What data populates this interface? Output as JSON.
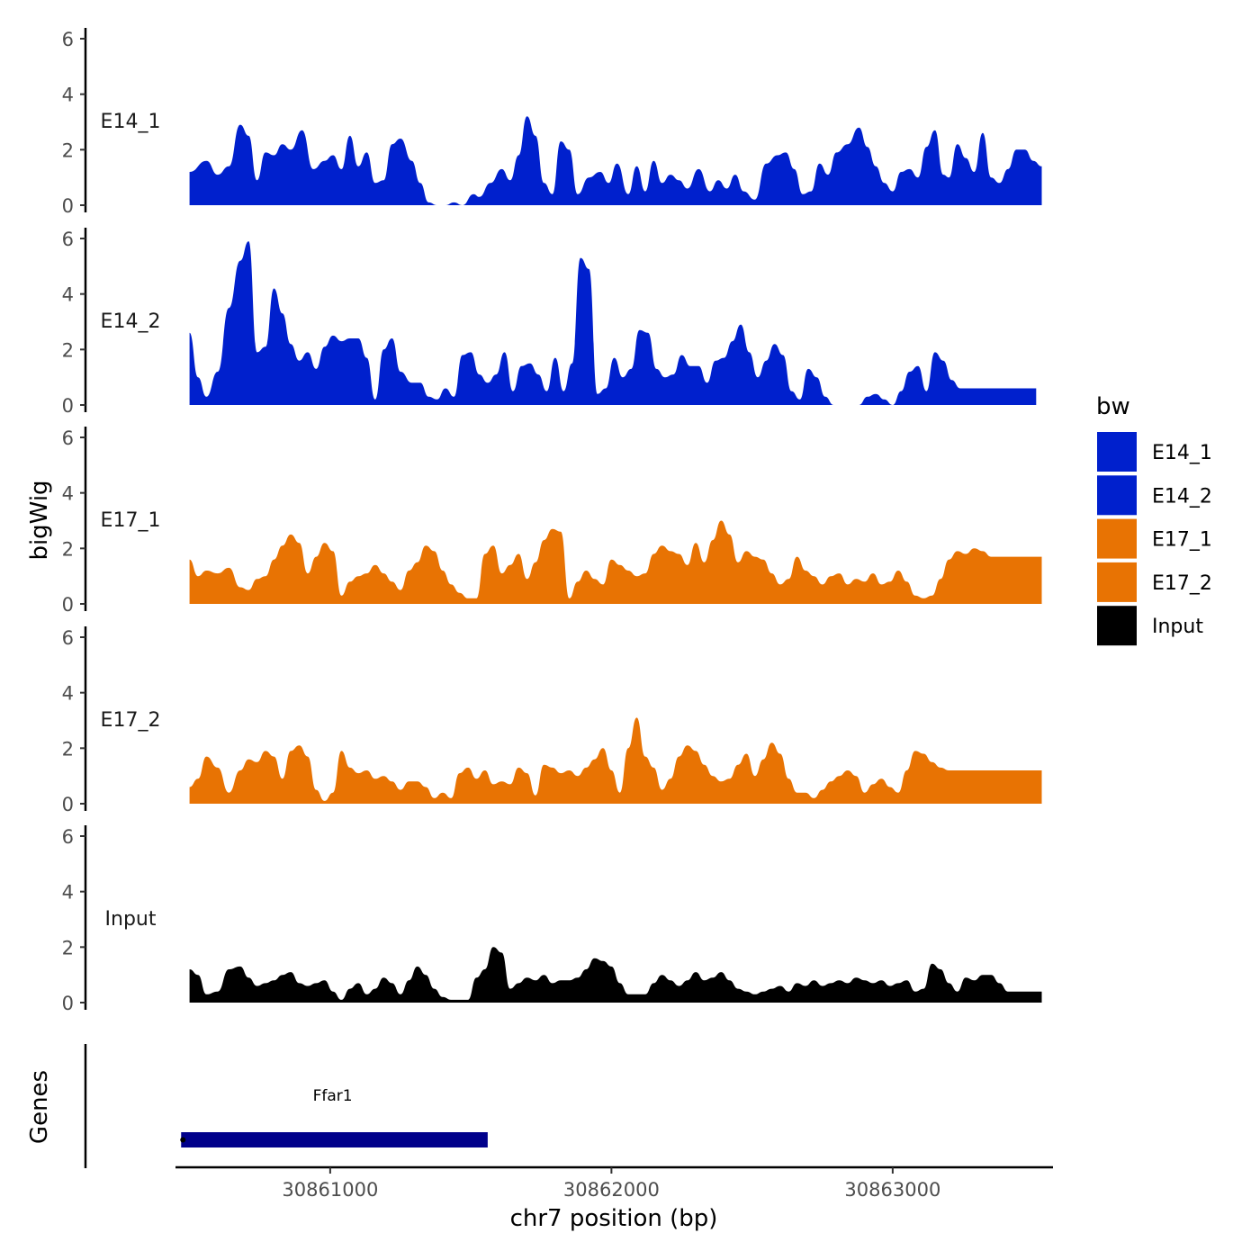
{
  "chart_data": {
    "type": "area",
    "title": "",
    "xlabel": "chr7 position (bp)",
    "ylabel": "bigWig",
    "genes_label": "Genes",
    "xlim": [
      30860450,
      30863570
    ],
    "ylim": [
      0,
      6
    ],
    "x_ticks": [
      30861000,
      30862000,
      30863000
    ],
    "x_tick_labels": [
      "30861000",
      "30862000",
      "30863000"
    ],
    "y_ticks": [
      0,
      2,
      4,
      6
    ],
    "y_tick_labels": [
      "0",
      "2",
      "4",
      "6"
    ],
    "legend": {
      "title": "bw",
      "position": "right",
      "entries": [
        {
          "label": "E14_1",
          "color": "#0020CD"
        },
        {
          "label": "E14_2",
          "color": "#0020CD"
        },
        {
          "label": "E17_1",
          "color": "#E87303"
        },
        {
          "label": "E17_2",
          "color": "#E87303"
        },
        {
          "label": "Input",
          "color": "#000000"
        }
      ]
    },
    "series": [
      {
        "name": "E14_1",
        "color": "#0020CD",
        "x": [
          30860500,
          30860560,
          30860600,
          30860640,
          30860680,
          30860710,
          30860740,
          30860770,
          30860800,
          30860830,
          30860860,
          30860900,
          30860940,
          30860980,
          30861010,
          30861040,
          30861070,
          30861100,
          30861130,
          30861160,
          30861190,
          30861220,
          30861250,
          30861290,
          30861320,
          30861350,
          30861380,
          30861410,
          30861440,
          30861470,
          30861510,
          30861530,
          30861570,
          30861610,
          30861640,
          30861670,
          30861700,
          30861730,
          30861760,
          30861790,
          30861820,
          30861850,
          30861880,
          30861920,
          30861960,
          30861990,
          30862020,
          30862060,
          30862090,
          30862120,
          30862150,
          30862180,
          30862210,
          30862240,
          30862270,
          30862310,
          30862350,
          30862380,
          30862410,
          30862440,
          30862470,
          30862510,
          30862550,
          30862590,
          30862620,
          30862650,
          30862680,
          30862710,
          30862740,
          30862770,
          30862800,
          30862840,
          30862880,
          30862910,
          30862940,
          30862970,
          30863000,
          30863030,
          30863060,
          30863090,
          30863120,
          30863150,
          30863180,
          30863200,
          30863230,
          30863260,
          30863290,
          30863320,
          30863350,
          30863380,
          30863410,
          30863440,
          30863470,
          30863500,
          30863530
        ],
        "y": [
          1.2,
          1.6,
          1.1,
          1.4,
          2.9,
          2.5,
          0.9,
          1.9,
          1.8,
          2.2,
          2.0,
          2.7,
          1.3,
          1.6,
          1.8,
          1.3,
          2.5,
          1.4,
          1.9,
          0.8,
          0.9,
          2.2,
          2.4,
          1.6,
          0.8,
          0.1,
          0.0,
          0.0,
          0.1,
          0.0,
          0.4,
          0.3,
          0.8,
          1.3,
          0.9,
          1.8,
          3.2,
          2.5,
          0.8,
          0.4,
          2.3,
          2.0,
          0.4,
          1.0,
          1.2,
          0.8,
          1.5,
          0.4,
          1.4,
          0.5,
          1.6,
          0.8,
          1.1,
          0.9,
          0.6,
          1.3,
          0.5,
          0.9,
          0.6,
          1.1,
          0.5,
          0.2,
          1.5,
          1.8,
          1.9,
          1.3,
          0.4,
          0.5,
          1.5,
          1.1,
          1.9,
          2.2,
          2.8,
          2.1,
          1.4,
          0.8,
          0.5,
          1.2,
          1.3,
          1.0,
          2.1,
          2.7,
          1.1,
          1.0,
          2.2,
          1.7,
          1.2,
          2.6,
          1.0,
          0.8,
          1.3,
          2.0,
          2.0,
          1.6,
          1.4
        ]
      },
      {
        "name": "E14_2",
        "color": "#0020CD",
        "x": [
          30860500,
          30860530,
          30860560,
          30860600,
          30860640,
          30860680,
          30860710,
          30860740,
          30860770,
          30860800,
          30860830,
          30860860,
          30860890,
          30860920,
          30860950,
          30860980,
          30861010,
          30861040,
          30861070,
          30861100,
          30861130,
          30861160,
          30861190,
          30861220,
          30861250,
          30861290,
          30861320,
          30861350,
          30861380,
          30861410,
          30861440,
          30861470,
          30861500,
          30861530,
          30861560,
          30861590,
          30861620,
          30861650,
          30861680,
          30861710,
          30861740,
          30861770,
          30861800,
          30861830,
          30861860,
          30861890,
          30861920,
          30861950,
          30861980,
          30862010,
          30862040,
          30862070,
          30862100,
          30862130,
          30862160,
          30862190,
          30862220,
          30862250,
          30862280,
          30862310,
          30862340,
          30862370,
          30862400,
          30862430,
          30862460,
          30862490,
          30862520,
          30862550,
          30862580,
          30862610,
          30862640,
          30862670,
          30862700,
          30862730,
          30862760,
          30862790,
          30862820,
          30862850,
          30862880,
          30862910,
          30862940,
          30862970,
          30863000,
          30863030,
          30863060,
          30863090,
          30863120,
          30863150,
          30863180,
          30863210,
          30863240,
          30863270,
          30863300,
          30863330,
          30863360,
          30863390,
          30863420,
          30863450,
          30863480,
          30863510
        ],
        "y": [
          2.6,
          1.0,
          0.3,
          1.2,
          3.5,
          5.2,
          5.9,
          1.9,
          2.1,
          4.2,
          3.3,
          2.2,
          1.6,
          1.9,
          1.3,
          2.1,
          2.5,
          2.3,
          2.4,
          2.4,
          1.7,
          0.2,
          2.0,
          2.4,
          1.2,
          0.8,
          0.8,
          0.3,
          0.2,
          0.6,
          0.3,
          1.8,
          1.9,
          1.1,
          0.8,
          1.1,
          1.9,
          0.5,
          1.4,
          1.5,
          1.1,
          0.5,
          1.7,
          0.5,
          1.5,
          5.3,
          4.9,
          0.4,
          0.6,
          1.7,
          1.0,
          1.3,
          2.7,
          2.6,
          1.3,
          1.0,
          1.1,
          1.8,
          1.4,
          1.4,
          0.8,
          1.6,
          1.7,
          2.3,
          2.9,
          1.9,
          1.0,
          1.6,
          2.2,
          1.8,
          0.5,
          0.2,
          1.3,
          1.0,
          0.3,
          0.0,
          0.0,
          0.0,
          0.0,
          0.3,
          0.4,
          0.2,
          0.0,
          0.5,
          1.2,
          1.4,
          0.5,
          1.9,
          1.6,
          0.9,
          0.6,
          0.6,
          0.6,
          0.6,
          0.6,
          0.6,
          0.6,
          0.6,
          0.6,
          0.6
        ]
      },
      {
        "name": "E17_1",
        "color": "#E87303",
        "x": [
          30860500,
          30860530,
          30860560,
          30860600,
          30860640,
          30860680,
          30860710,
          30860740,
          30860770,
          30860800,
          30860830,
          30860860,
          30860890,
          30860920,
          30860950,
          30860980,
          30861010,
          30861040,
          30861070,
          30861100,
          30861130,
          30861160,
          30861190,
          30861220,
          30861250,
          30861280,
          30861310,
          30861340,
          30861370,
          30861400,
          30861430,
          30861460,
          30861490,
          30861520,
          30861550,
          30861580,
          30861610,
          30861640,
          30861670,
          30861700,
          30861730,
          30861760,
          30861790,
          30861820,
          30861850,
          30861880,
          30861910,
          30861940,
          30861970,
          30862000,
          30862030,
          30862060,
          30862090,
          30862120,
          30862150,
          30862180,
          30862210,
          30862240,
          30862270,
          30862300,
          30862330,
          30862360,
          30862390,
          30862420,
          30862450,
          30862480,
          30862510,
          30862540,
          30862570,
          30862600,
          30862630,
          30862660,
          30862690,
          30862720,
          30862750,
          30862780,
          30862810,
          30862840,
          30862870,
          30862900,
          30862930,
          30862960,
          30862990,
          30863020,
          30863050,
          30863080,
          30863110,
          30863140,
          30863170,
          30863200,
          30863230,
          30863260,
          30863290,
          30863320,
          30863350,
          30863380,
          30863410,
          30863440,
          30863470,
          30863500,
          30863530
        ],
        "y": [
          1.6,
          1.0,
          1.2,
          1.1,
          1.3,
          0.6,
          0.5,
          0.9,
          1.0,
          1.6,
          2.1,
          2.5,
          2.2,
          1.1,
          1.7,
          2.2,
          1.9,
          0.3,
          0.8,
          1.0,
          1.1,
          1.4,
          1.1,
          0.8,
          0.5,
          1.2,
          1.5,
          2.1,
          1.9,
          1.2,
          0.7,
          0.4,
          0.2,
          0.2,
          1.8,
          2.1,
          1.1,
          1.4,
          1.8,
          0.9,
          1.5,
          2.3,
          2.7,
          2.6,
          0.2,
          0.8,
          1.2,
          0.9,
          0.7,
          1.6,
          1.4,
          1.2,
          1.0,
          1.1,
          1.8,
          2.1,
          1.9,
          1.8,
          1.4,
          2.2,
          1.5,
          2.3,
          3.0,
          2.5,
          1.5,
          1.9,
          1.7,
          1.6,
          1.1,
          0.7,
          0.9,
          1.7,
          1.2,
          1.0,
          0.7,
          1.0,
          1.1,
          0.7,
          0.9,
          0.8,
          1.1,
          0.7,
          0.8,
          1.2,
          0.8,
          0.3,
          0.2,
          0.3,
          0.9,
          1.6,
          1.9,
          1.8,
          2.0,
          1.9,
          1.7,
          1.7,
          1.7,
          1.7,
          1.7,
          1.7,
          1.7
        ]
      },
      {
        "name": "E17_2",
        "color": "#E87303",
        "x": [
          30860500,
          30860530,
          30860560,
          30860600,
          30860640,
          30860680,
          30860710,
          30860740,
          30860770,
          30860800,
          30860830,
          30860860,
          30860890,
          30860920,
          30860950,
          30860980,
          30861010,
          30861040,
          30861070,
          30861100,
          30861130,
          30861160,
          30861190,
          30861220,
          30861250,
          30861280,
          30861310,
          30861340,
          30861370,
          30861400,
          30861430,
          30861460,
          30861490,
          30861520,
          30861550,
          30861580,
          30861610,
          30861640,
          30861670,
          30861700,
          30861730,
          30861760,
          30861790,
          30861820,
          30861850,
          30861880,
          30861910,
          30861940,
          30861970,
          30862000,
          30862030,
          30862060,
          30862090,
          30862120,
          30862150,
          30862180,
          30862210,
          30862240,
          30862270,
          30862300,
          30862330,
          30862360,
          30862390,
          30862420,
          30862450,
          30862480,
          30862510,
          30862540,
          30862570,
          30862600,
          30862630,
          30862660,
          30862690,
          30862720,
          30862750,
          30862780,
          30862810,
          30862840,
          30862870,
          30862900,
          30862930,
          30862960,
          30862990,
          30863020,
          30863050,
          30863080,
          30863110,
          30863140,
          30863170,
          30863200,
          30863230,
          30863260,
          30863290,
          30863320,
          30863350,
          30863380,
          30863410,
          30863440,
          30863470,
          30863500,
          30863530
        ],
        "y": [
          0.6,
          0.9,
          1.7,
          1.3,
          0.4,
          1.2,
          1.6,
          1.5,
          1.9,
          1.7,
          0.9,
          1.9,
          2.1,
          1.7,
          0.5,
          0.1,
          0.4,
          1.9,
          1.3,
          1.1,
          1.2,
          0.9,
          1.0,
          0.8,
          0.5,
          0.8,
          0.8,
          0.6,
          0.2,
          0.4,
          0.2,
          1.1,
          1.3,
          0.9,
          1.2,
          0.7,
          0.8,
          0.7,
          1.3,
          1.1,
          0.3,
          1.4,
          1.3,
          1.1,
          1.2,
          1.0,
          1.3,
          1.6,
          2.0,
          1.2,
          0.4,
          2.0,
          3.1,
          1.7,
          1.3,
          0.5,
          0.9,
          1.7,
          2.1,
          1.9,
          1.4,
          1.0,
          0.8,
          0.9,
          1.4,
          1.8,
          1.0,
          1.6,
          2.2,
          1.8,
          0.9,
          0.4,
          0.4,
          0.2,
          0.5,
          0.8,
          1.0,
          1.2,
          1.0,
          0.4,
          0.7,
          0.9,
          0.6,
          0.4,
          1.2,
          1.9,
          1.8,
          1.5,
          1.3,
          1.2,
          1.2,
          1.2,
          1.2,
          1.2,
          1.2,
          1.2,
          1.2,
          1.2,
          1.2,
          1.2,
          1.2
        ]
      },
      {
        "name": "Input",
        "color": "#000000",
        "x": [
          30860500,
          30860530,
          30860560,
          30860600,
          30860640,
          30860680,
          30860710,
          30860740,
          30860770,
          30860800,
          30860830,
          30860860,
          30860890,
          30860920,
          30860950,
          30860980,
          30861010,
          30861040,
          30861070,
          30861100,
          30861130,
          30861160,
          30861190,
          30861220,
          30861250,
          30861280,
          30861310,
          30861340,
          30861370,
          30861400,
          30861430,
          30861460,
          30861490,
          30861520,
          30861550,
          30861580,
          30861610,
          30861640,
          30861670,
          30861700,
          30861730,
          30861760,
          30861790,
          30861820,
          30861850,
          30861880,
          30861910,
          30861940,
          30861970,
          30862000,
          30862030,
          30862060,
          30862090,
          30862120,
          30862150,
          30862180,
          30862210,
          30862240,
          30862270,
          30862300,
          30862330,
          30862360,
          30862390,
          30862420,
          30862450,
          30862480,
          30862510,
          30862540,
          30862570,
          30862600,
          30862630,
          30862660,
          30862690,
          30862720,
          30862750,
          30862780,
          30862810,
          30862840,
          30862870,
          30862900,
          30862930,
          30862960,
          30862990,
          30863020,
          30863050,
          30863080,
          30863110,
          30863140,
          30863170,
          30863200,
          30863230,
          30863260,
          30863290,
          30863320,
          30863350,
          30863380,
          30863410,
          30863440,
          30863470,
          30863500,
          30863530
        ],
        "y": [
          1.2,
          1.0,
          0.3,
          0.4,
          1.2,
          1.3,
          0.9,
          0.6,
          0.7,
          0.8,
          1.0,
          1.1,
          0.7,
          0.6,
          0.7,
          0.8,
          0.4,
          0.1,
          0.5,
          0.7,
          0.3,
          0.5,
          0.9,
          0.7,
          0.3,
          0.8,
          1.3,
          1.0,
          0.5,
          0.2,
          0.1,
          0.1,
          0.1,
          0.9,
          1.2,
          2.0,
          1.8,
          0.5,
          0.7,
          0.9,
          0.8,
          1.0,
          0.7,
          0.8,
          0.8,
          0.9,
          1.2,
          1.6,
          1.5,
          1.3,
          0.7,
          0.3,
          0.3,
          0.3,
          0.7,
          1.0,
          0.8,
          0.6,
          0.8,
          1.1,
          0.8,
          0.9,
          1.1,
          0.8,
          0.5,
          0.4,
          0.3,
          0.4,
          0.5,
          0.6,
          0.4,
          0.7,
          0.6,
          0.8,
          0.6,
          0.7,
          0.8,
          0.7,
          0.9,
          0.8,
          0.7,
          0.8,
          0.6,
          0.7,
          0.8,
          0.4,
          0.5,
          1.4,
          1.2,
          0.7,
          0.4,
          0.9,
          0.8,
          1.0,
          1.0,
          0.7,
          0.4,
          0.4,
          0.4,
          0.4,
          0.4
        ]
      }
    ],
    "genes": [
      {
        "name": "Ffar1",
        "start": 30860470,
        "end": 30861560,
        "color": "#00008B"
      }
    ]
  }
}
